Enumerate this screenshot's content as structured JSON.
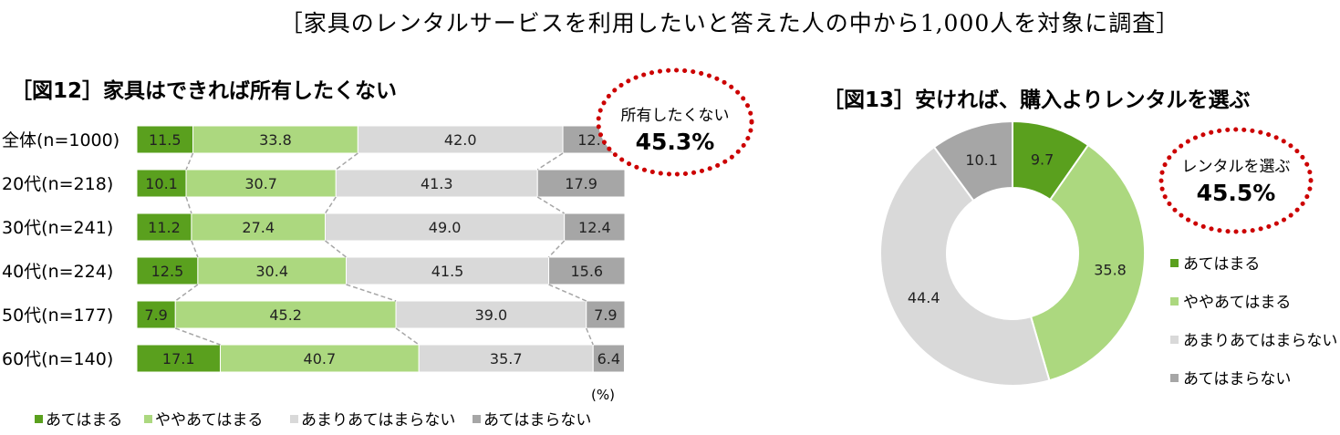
{
  "header": {
    "survey_note": "［家具のレンタルサービスを利用したいと答えた人の中から1,000人を対象に調査］"
  },
  "colors": {
    "strong_agree": "#5aa01e",
    "agree": "#acd87f",
    "disagree": "#d9d9d9",
    "strong_disagree": "#a6a6a6",
    "callout_border": "#cc0000"
  },
  "chart_data": [
    {
      "type": "bar",
      "orientation": "horizontal-stacked-100",
      "title": "［図12］家具はできれば所有したくない",
      "unit_label": "(%)",
      "categories": [
        "全体(n=1000)",
        "20代(n=218)",
        "30代(n=241)",
        "40代(n=224)",
        "50代(n=177)",
        "60代(n=140)"
      ],
      "series": [
        {
          "name": "あてはまる",
          "values": [
            11.5,
            10.1,
            11.2,
            12.5,
            7.9,
            17.1
          ]
        },
        {
          "name": "ややあてはまる",
          "values": [
            33.8,
            30.7,
            27.4,
            30.4,
            45.2,
            40.7
          ]
        },
        {
          "name": "あまりあてはまらない",
          "values": [
            42.0,
            41.3,
            49.0,
            41.5,
            39.0,
            35.7
          ]
        },
        {
          "name": "あてはまらない",
          "values": [
            12.7,
            17.9,
            12.4,
            15.6,
            7.9,
            6.4
          ]
        }
      ],
      "callout": {
        "label": "所有したくない",
        "value": "45.3%"
      },
      "legend_position": "bottom"
    },
    {
      "type": "pie",
      "variant": "donut",
      "title": "［図13］安ければ、購入よりレンタルを選ぶ",
      "slices": [
        {
          "name": "あてはまる",
          "value": 9.7
        },
        {
          "name": "ややあてはまる",
          "value": 35.8
        },
        {
          "name": "あまりあてはまらない",
          "value": 44.4
        },
        {
          "name": "あてはまらない",
          "value": 10.1
        }
      ],
      "callout": {
        "label": "レンタルを選ぶ",
        "value": "45.5%"
      },
      "legend_position": "right"
    }
  ]
}
